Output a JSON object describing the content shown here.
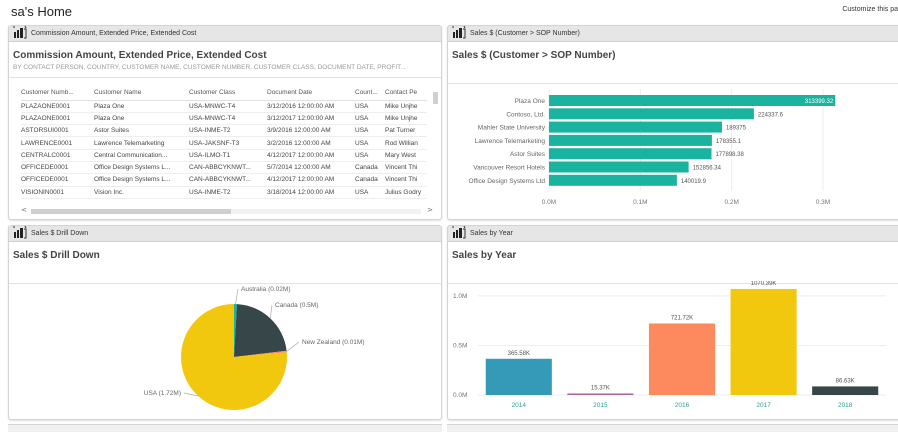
{
  "page": {
    "title": "sa's Home",
    "customize_link": "Customize this pa"
  },
  "tiles": {
    "commission": {
      "header": "Commission Amount, Extended Price, Extended Cost",
      "title": "Commission Amount, Extended Price, Extended Cost",
      "subtitle": "BY CONTACT PERSON, COUNTRY, CUSTOMER NAME, CUSTOMER NUMBER, CUSTOMER CLASS, DOCUMENT DATE, PROFIT...",
      "columns": [
        "Customer Numb...",
        "Customer Name",
        "Customer Class",
        "Document Date",
        "Count...",
        "Contact Pe"
      ],
      "rows": [
        [
          "PLAZAONE0001",
          "Plaza One",
          "USA-MNWC-T4",
          "3/12/2016 12:00:00 AM",
          "USA",
          "Mike Unjhe"
        ],
        [
          "PLAZAONE0001",
          "Plaza One",
          "USA-MNWC-T4",
          "3/12/2017 12:00:00 AM",
          "USA",
          "Mike Unjhe"
        ],
        [
          "ASTORSUI0001",
          "Astor Suites",
          "USA-INME-T2",
          "3/9/2016 12:00:00 AM",
          "USA",
          "Pat Turner"
        ],
        [
          "LAWRENCE0001",
          "Lawrence Telemarketing",
          "USA-JAKSNF-T3",
          "3/2/2016 12:00:00 AM",
          "USA",
          "Rod Willian"
        ],
        [
          "CENTRALC0001",
          "Central Communication...",
          "USA-ILMO-T1",
          "4/12/2017 12:00:00 AM",
          "USA",
          "Mary West"
        ],
        [
          "OFFICEDE0001",
          "Office Design Systems L...",
          "CAN-ABBCYKNWT...",
          "5/7/2014 12:00:00 AM",
          "Canada",
          "Vincent Thi"
        ],
        [
          "OFFICEDE0001",
          "Office Design Systems L...",
          "CAN-ABBCYKNWT...",
          "4/12/2017 12:00:00 AM",
          "Canada",
          "Vincent Thi"
        ],
        [
          "VISIONIN0001",
          "Vision Inc.",
          "USA-INME-T2",
          "3/18/2014 12:00:00 AM",
          "USA",
          "Julius Godry"
        ]
      ],
      "scroll_left": "<",
      "scroll_right": ">"
    },
    "sales_customer": {
      "header": "Sales $ (Customer > SOP Number)",
      "title": "Sales $ (Customer > SOP Number)"
    },
    "drilldown": {
      "header": "Sales $ Drill Down",
      "title": "Sales $ Drill Down"
    },
    "sales_year": {
      "header": "Sales by Year",
      "title": "Sales by Year"
    }
  },
  "colors": {
    "teal": "#1ab39f",
    "yellow": "#f2c80f",
    "dark": "#374649",
    "orange": "#fd8a5e",
    "blue": "#3599b8",
    "purple": "#a66999",
    "nz": "#fd8a5e",
    "axis_teal": "#2aa198"
  },
  "chart_data": [
    {
      "type": "bar",
      "orientation": "horizontal",
      "title": "Sales $ (Customer > SOP Number)",
      "categories": [
        "Plaza One",
        "Contoso, Ltd.",
        "Mahler State University",
        "Lawrence Telemarketing",
        "Astor Suites",
        "Vancouver Resort Hotels",
        "Office Design Systems Ltd"
      ],
      "values": [
        313399.32,
        224337.6,
        189375,
        178355.1,
        177898.38,
        152856.34,
        140019.9
      ],
      "labels": [
        "313399.32",
        "224337.6",
        "189375",
        "178355.1",
        "177898.38",
        "152856.34",
        "140019.9"
      ],
      "xticks": [
        "0.0M",
        "0.1M",
        "0.2M",
        "0.3M"
      ],
      "xlim": [
        0,
        300000
      ],
      "grid": true
    },
    {
      "type": "pie",
      "title": "Sales $ Drill Down",
      "categories": [
        "Australia",
        "Canada",
        "New Zealand",
        "USA"
      ],
      "values": [
        0.02,
        0.5,
        0.01,
        1.72
      ],
      "labels": [
        "Australia (0.02M)",
        "Canada (0.5M)",
        "New Zealand (0.01M)",
        "USA (1.72M)"
      ]
    },
    {
      "type": "bar",
      "orientation": "vertical",
      "title": "Sales by Year",
      "categories": [
        "2014",
        "2015",
        "2016",
        "2017",
        "2018"
      ],
      "values": [
        365580,
        15370,
        721720,
        1070390,
        86630
      ],
      "labels": [
        "365.58K",
        "15.37K",
        "721.72K",
        "1070.39K",
        "86.63K"
      ],
      "yticks": [
        "0.0M",
        "0.5M",
        "1.0M"
      ],
      "ylim": [
        0,
        1100000
      ],
      "grid": true
    }
  ]
}
